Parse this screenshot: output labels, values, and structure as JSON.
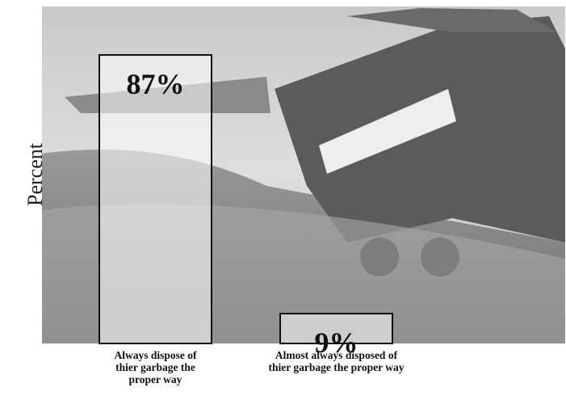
{
  "chart_data": {
    "type": "bar",
    "y_label": "Percent",
    "categories": [
      "Always dispose of thier garbage the proper way",
      "Almost always disposed of thier garbage the proper way"
    ],
    "values": [
      87,
      9
    ],
    "value_labels": [
      "87%",
      "9%"
    ],
    "color": "#ffffff"
  }
}
